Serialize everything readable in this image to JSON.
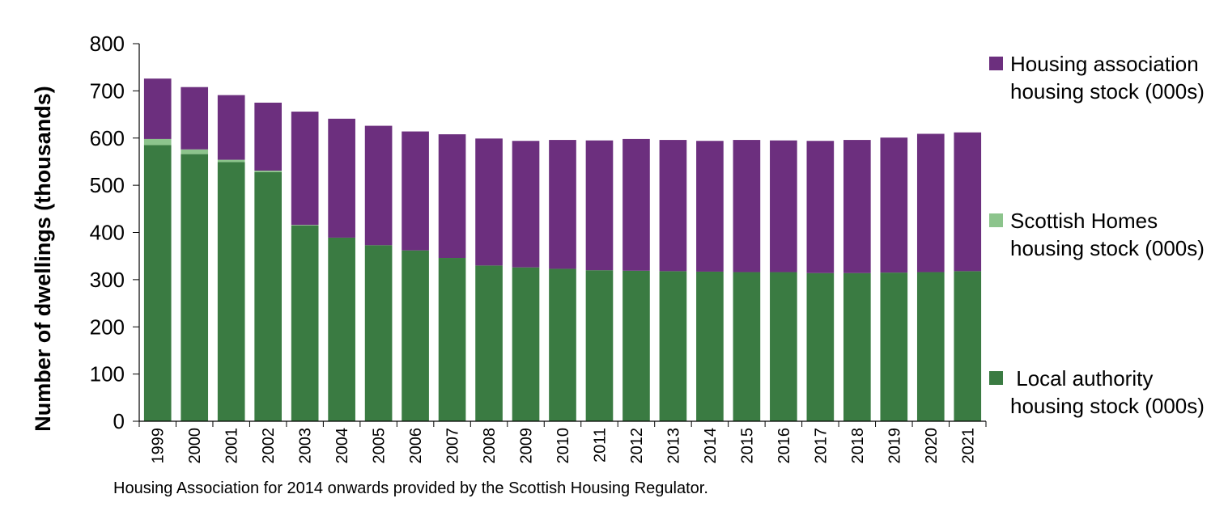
{
  "chart_data": {
    "type": "bar",
    "stacked": true,
    "title": "",
    "xlabel": "",
    "ylabel": "Number of dwellings (thousands)",
    "ylim": [
      0,
      800
    ],
    "yticks": [
      0,
      100,
      200,
      300,
      400,
      500,
      600,
      700,
      800
    ],
    "grid": false,
    "legend_position": "right",
    "categories": [
      "1999",
      "2000",
      "2001",
      "2002",
      "2003",
      "2004",
      "2005",
      "2006",
      "2007",
      "2008",
      "2009",
      "2010",
      "2011",
      "2012",
      "2013",
      "2014",
      "2015",
      "2016",
      "2017",
      "2018",
      "2019",
      "2020",
      "2021"
    ],
    "series": [
      {
        "name": " Local authority housing stock (000s)",
        "color": "#3a7b42",
        "values": [
          585,
          566,
          549,
          528,
          415,
          389,
          373,
          362,
          346,
          330,
          326,
          323,
          320,
          319,
          318,
          317,
          316,
          316,
          314,
          314,
          315,
          316,
          318
        ]
      },
      {
        "name": "Scottish Homes housing stock (000s)",
        "color": "#8cc48c",
        "values": [
          13,
          10,
          5,
          3,
          1,
          0,
          0,
          0,
          0,
          0,
          0,
          0,
          0,
          0,
          0,
          0,
          0,
          0,
          0,
          0,
          0,
          0,
          0
        ]
      },
      {
        "name": "Housing association housing stock (000s)",
        "color": "#6c2f7e",
        "values": [
          128,
          132,
          137,
          144,
          240,
          252,
          253,
          252,
          262,
          269,
          268,
          273,
          275,
          279,
          278,
          277,
          280,
          279,
          280,
          282,
          286,
          293,
          294
        ]
      }
    ],
    "footnote": "Housing Association for 2014 onwards provided by the Scottish Housing Regulator."
  },
  "legend": [
    {
      "label": "Housing association housing stock (000s)",
      "color": "#6c2f7e"
    },
    {
      "label": "Scottish Homes housing stock (000s)",
      "color": "#8cc48c"
    },
    {
      "label": " Local authority housing stock (000s)",
      "color": "#3a7b42"
    }
  ]
}
